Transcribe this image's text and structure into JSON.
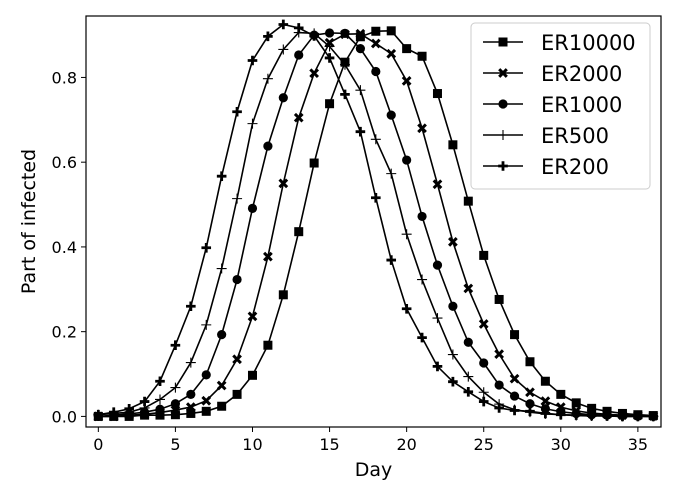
{
  "chart_data": {
    "type": "line",
    "xlabel": "Day",
    "ylabel": "Part of infected",
    "xlim": [
      -0.8,
      36.5
    ],
    "ylim": [
      -0.025,
      0.945
    ],
    "xticks": [
      0,
      5,
      10,
      15,
      20,
      25,
      30,
      35
    ],
    "yticks": [
      0.0,
      0.2,
      0.4,
      0.6,
      0.8
    ],
    "ytick_labels": [
      "0.0",
      "0.2",
      "0.4",
      "0.6",
      "0.8"
    ],
    "grid": false,
    "legend": "top-right",
    "x": [
      0,
      1,
      2,
      3,
      4,
      5,
      6,
      7,
      8,
      9,
      10,
      11,
      12,
      13,
      14,
      15,
      16,
      17,
      18,
      19,
      20,
      21,
      22,
      23,
      24,
      25,
      26,
      27,
      28,
      29,
      30,
      31,
      32,
      33,
      34,
      35,
      36
    ],
    "series": [
      {
        "name": "ER10000",
        "marker": "square",
        "values": [
          0.0,
          0.0,
          0.0,
          0.003,
          0.003,
          0.004,
          0.007,
          0.012,
          0.024,
          0.052,
          0.097,
          0.168,
          0.287,
          0.436,
          0.598,
          0.738,
          0.836,
          0.896,
          0.909,
          0.91,
          0.868,
          0.85,
          0.762,
          0.641,
          0.508,
          0.38,
          0.276,
          0.193,
          0.129,
          0.083,
          0.052,
          0.032,
          0.019,
          0.012,
          0.007,
          0.004,
          0.002
        ]
      },
      {
        "name": "ER2000",
        "marker": "x",
        "values": [
          0.0,
          0.0,
          0.003,
          0.005,
          0.009,
          0.015,
          0.022,
          0.037,
          0.073,
          0.135,
          0.236,
          0.377,
          0.55,
          0.705,
          0.81,
          0.882,
          0.902,
          0.903,
          0.88,
          0.856,
          0.792,
          0.68,
          0.548,
          0.412,
          0.302,
          0.218,
          0.147,
          0.089,
          0.057,
          0.036,
          0.022,
          0.013,
          0.008,
          0.005,
          0.003,
          0.002,
          0.001
        ]
      },
      {
        "name": "ER1000",
        "marker": "circle",
        "values": [
          0.0,
          0.003,
          0.006,
          0.01,
          0.017,
          0.03,
          0.052,
          0.098,
          0.193,
          0.323,
          0.491,
          0.638,
          0.752,
          0.853,
          0.9,
          0.905,
          0.904,
          0.868,
          0.814,
          0.711,
          0.605,
          0.472,
          0.357,
          0.26,
          0.175,
          0.126,
          0.074,
          0.048,
          0.03,
          0.018,
          0.011,
          0.007,
          0.004,
          0.003,
          0.002,
          0.001,
          0.0
        ]
      },
      {
        "name": "ER500",
        "marker": "plus-thin",
        "values": [
          0.004,
          0.007,
          0.01,
          0.02,
          0.04,
          0.068,
          0.127,
          0.216,
          0.349,
          0.514,
          0.691,
          0.797,
          0.866,
          0.906,
          0.904,
          0.873,
          0.83,
          0.77,
          0.654,
          0.573,
          0.43,
          0.323,
          0.232,
          0.146,
          0.094,
          0.057,
          0.029,
          0.016,
          0.01,
          0.006,
          0.004,
          0.002,
          0.001,
          0.001,
          0.0,
          0.0,
          0.0
        ]
      },
      {
        "name": "ER200",
        "marker": "plus-thick",
        "values": [
          0.004,
          0.01,
          0.018,
          0.035,
          0.083,
          0.168,
          0.26,
          0.398,
          0.567,
          0.719,
          0.84,
          0.897,
          0.925,
          0.917,
          0.898,
          0.846,
          0.76,
          0.672,
          0.516,
          0.369,
          0.254,
          0.186,
          0.118,
          0.082,
          0.058,
          0.035,
          0.02,
          0.014,
          0.012,
          0.007,
          0.004,
          0.003,
          0.002,
          0.001,
          0.0,
          0.0,
          0.0
        ]
      }
    ]
  }
}
